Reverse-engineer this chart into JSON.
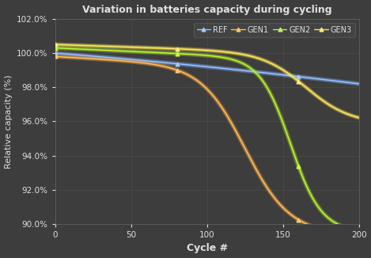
{
  "title": "Variation in batteries capacity during cycling",
  "xlabel": "Cycle #",
  "ylabel": "Relative capacity (%)",
  "xlim": [
    0,
    200
  ],
  "ylim": [
    90.0,
    102.0
  ],
  "yticks": [
    90.0,
    92.0,
    94.0,
    96.0,
    98.0,
    100.0,
    102.0
  ],
  "xticks": [
    0,
    50,
    100,
    150,
    200
  ],
  "background_color": "#3d3d3d",
  "plot_bg_color": "#3d3d3d",
  "grid_color": "#555555",
  "text_color": "#e0e0e0",
  "series": [
    {
      "name": "REF",
      "color": "#5599ff",
      "glow": "#aaccff"
    },
    {
      "name": "GEN1",
      "color": "#ff8800",
      "glow": "#ffcc77"
    },
    {
      "name": "GEN2",
      "color": "#88cc00",
      "glow": "#ccff44"
    },
    {
      "name": "GEN3",
      "color": "#ffdd00",
      "glow": "#ffee88"
    }
  ]
}
